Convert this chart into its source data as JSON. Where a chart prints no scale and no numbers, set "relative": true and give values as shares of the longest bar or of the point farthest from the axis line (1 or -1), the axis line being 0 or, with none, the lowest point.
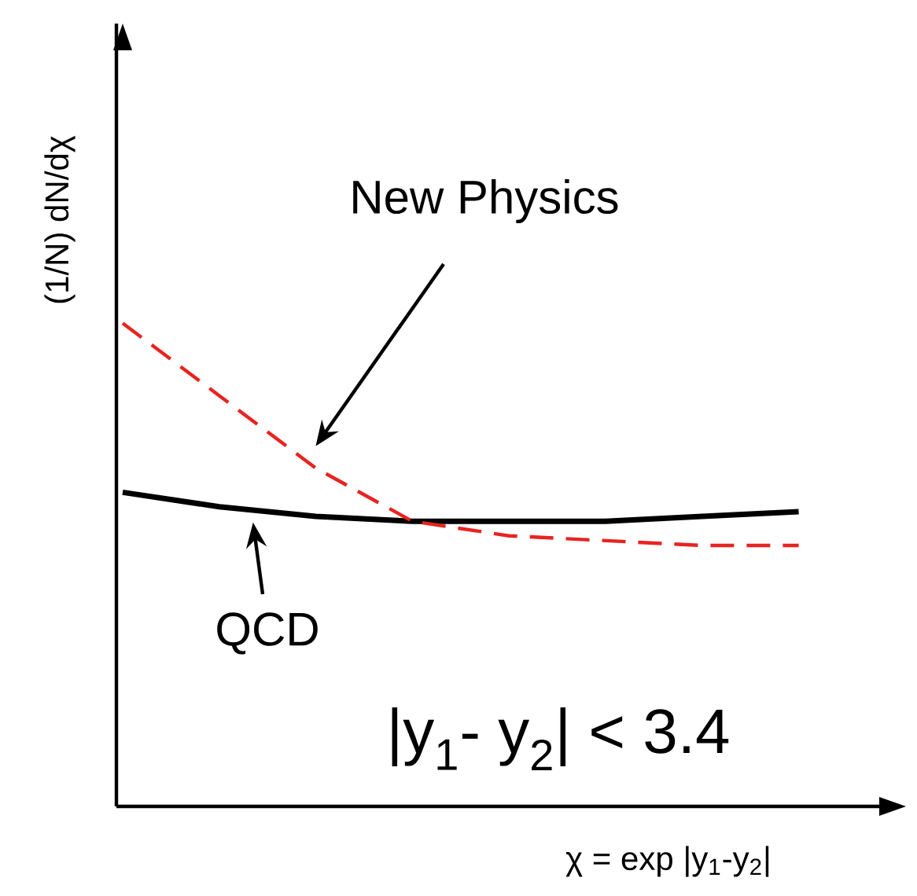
{
  "chart_data": {
    "type": "line",
    "relative": true,
    "xlabel": "χ  = exp |y$_{1}$-y$_{2}$|",
    "ylabel": "(1/N) dN/dχ",
    "categories": [
      null,
      null,
      null,
      null,
      null,
      null,
      null,
      null
    ],
    "series": [
      {
        "name": "QCD",
        "color": "#000000",
        "line_style": "solid",
        "values": [
          0.65,
          0.62,
          0.6,
          0.59,
          0.59,
          0.59,
          0.6,
          0.61
        ]
      },
      {
        "name": "New Physics",
        "color": "#e8231f",
        "line_style": "dashed",
        "values": [
          1.0,
          0.85,
          0.7,
          0.59,
          0.56,
          0.55,
          0.54,
          0.54
        ]
      }
    ],
    "annotations": [
      "|y$_{1}$- y$_{2}$| < 3.4"
    ]
  }
}
